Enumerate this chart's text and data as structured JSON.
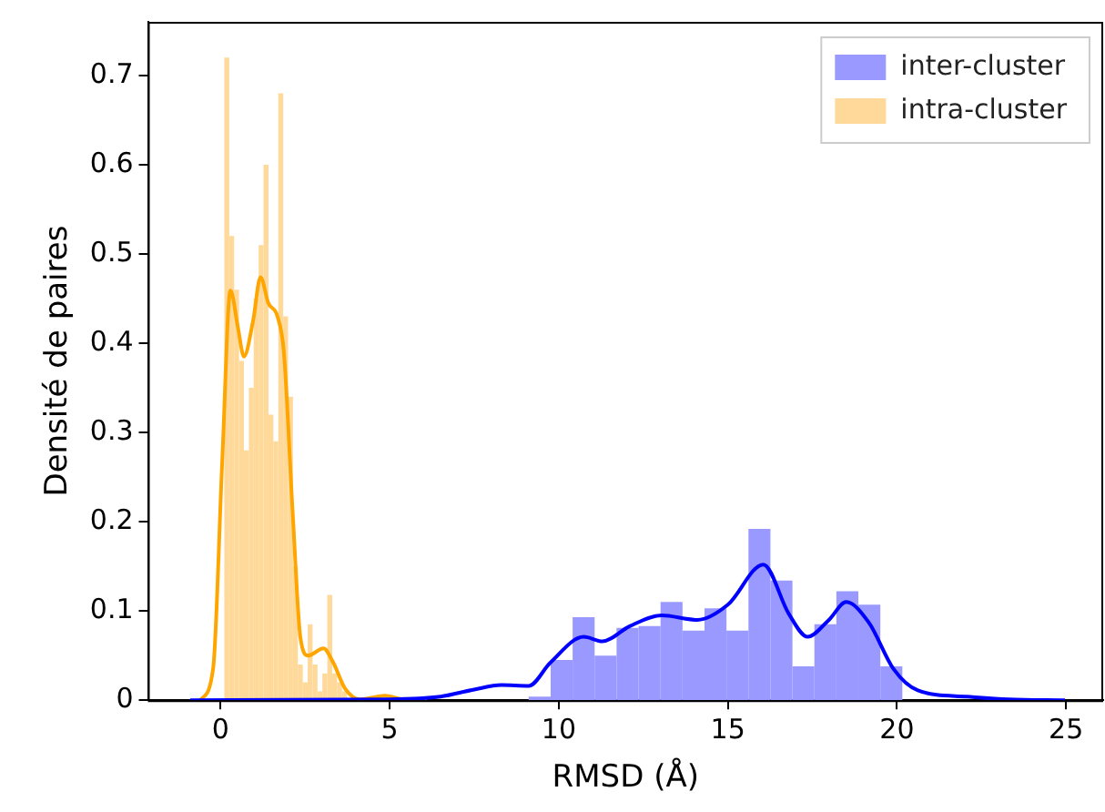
{
  "chart_data": {
    "type": "histogram",
    "xlabel": "RMSD (Å)",
    "ylabel": "Densité de paires",
    "xlim": [
      -2.15,
      26.1
    ],
    "ylim": [
      0,
      0.76
    ],
    "xticks": [
      0,
      5,
      10,
      15,
      20,
      25
    ],
    "yticks": [
      0,
      0.1,
      0.2,
      0.3,
      0.4,
      0.5,
      0.6,
      0.7
    ],
    "grid": false,
    "legend": "top right",
    "series": [
      {
        "name": "inter-cluster",
        "color": "#9999ff",
        "bins": [
          9.11,
          9.76,
          10.41,
          11.06,
          11.71,
          12.36,
          13.01,
          13.66,
          14.31,
          14.96,
          15.61,
          16.26,
          16.91,
          17.56,
          18.21,
          18.86,
          19.51,
          20.16
        ],
        "values": [
          0.004,
          0.045,
          0.093,
          0.05,
          0.081,
          0.083,
          0.11,
          0.078,
          0.103,
          0.078,
          0.192,
          0.134,
          0.038,
          0.085,
          0.122,
          0.107,
          0.038
        ]
      },
      {
        "name": "intra-cluster",
        "color": "#ffd999",
        "bins": [
          0.11,
          0.255,
          0.4,
          0.545,
          0.69,
          0.835,
          0.98,
          1.125,
          1.27,
          1.415,
          1.56,
          1.705,
          1.85,
          1.995,
          2.14,
          2.285,
          2.43,
          2.575,
          2.72,
          2.865,
          3.01,
          3.155,
          3.3,
          3.445,
          3.59,
          3.735,
          3.88,
          4.025,
          4.17,
          4.315,
          4.46,
          4.605,
          4.75,
          4.895,
          5.04,
          5.185,
          5.33,
          5.475,
          5.62
        ],
        "values": [
          0.72,
          0.52,
          0.46,
          0.38,
          0.28,
          0.35,
          0.45,
          0.51,
          0.6,
          0.32,
          0.29,
          0.68,
          0.43,
          0.34,
          0.15,
          0.04,
          0.02,
          0.085,
          0.04,
          0.01,
          0.03,
          0.118,
          0.03,
          0.02,
          0.01,
          null,
          0,
          0,
          0,
          0,
          null,
          0,
          0,
          null,
          0,
          0,
          null,
          0
        ]
      },
      {
        "type": "line",
        "color": "#0000ff",
        "x": [
          -0.9,
          5,
          6.5,
          7.5,
          8.3,
          9.11,
          9.75,
          10.74,
          11.29,
          12.1,
          13.04,
          14.1,
          15.0,
          16.05,
          16.8,
          17.36,
          17.99,
          18.5,
          19.17,
          19.9,
          20.62,
          22.07,
          23.3,
          24.97
        ],
        "values": [
          0,
          0.001,
          0.004,
          0.012,
          0.017,
          0.016,
          0.042,
          0.071,
          0.066,
          0.083,
          0.095,
          0.09,
          0.107,
          0.152,
          0.097,
          0.071,
          0.09,
          0.11,
          0.087,
          0.035,
          0.011,
          0.004,
          0.001,
          0
        ]
      },
      {
        "type": "line",
        "color": "#ffa500",
        "x": [
          -0.6,
          -0.22,
          0.05,
          0.29,
          0.51,
          0.69,
          0.96,
          1.18,
          1.41,
          1.68,
          1.87,
          2.14,
          2.36,
          2.59,
          3.04,
          3.32,
          3.68,
          4.13,
          4.86,
          5.4,
          6.1
        ],
        "values": [
          0,
          0.036,
          0.27,
          0.459,
          0.418,
          0.385,
          0.425,
          0.474,
          0.445,
          0.43,
          0.39,
          0.204,
          0.07,
          0.05,
          0.058,
          0.043,
          0.013,
          0.001,
          0.005,
          0.001,
          0
        ]
      }
    ]
  }
}
